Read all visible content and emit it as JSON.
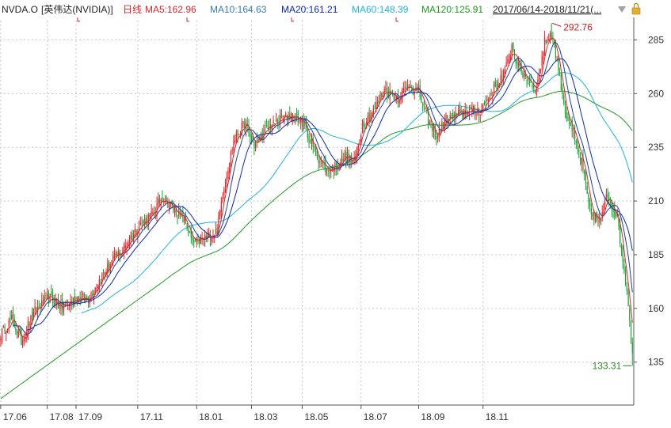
{
  "header": {
    "symbol": "NVDA.O",
    "name": "[英伟达(NVIDIA)]",
    "period": "日线",
    "ma5": "MA5:162.96",
    "ma10": "MA10:164.63",
    "ma20": "MA20:161.21",
    "ma60": "MA60:148.39",
    "ma120": "MA120:125.91",
    "range": "2017/06/14-2018/11/21(...",
    "dropdown_icon": "triangle-down-icon",
    "lock_icon": "lock-icon"
  },
  "colors": {
    "up": "#e0262b",
    "down": "#16a33a",
    "ma5": "#d6262a",
    "ma10": "#1d3f9a",
    "ma20": "#0b2aa8",
    "ma60": "#1fb4df",
    "ma120": "#1f9a1f",
    "header_symbol": "#222222",
    "header_ma10": "#3a7ab8",
    "header_ma60": "#1fb4df",
    "grid": "#c9c9c9",
    "max_label": "#cc1f1f",
    "min_label": "#2a8a2a"
  },
  "chart_data": {
    "type": "candlestick",
    "title": "NVDA.O [英伟达(NVIDIA)] 日线",
    "ylim": [
      115,
      294
    ],
    "y_ticks": [
      135,
      160,
      185,
      210,
      235,
      260,
      285
    ],
    "x_ticks": [
      "17.06",
      "17.08",
      "17.09",
      "17.11",
      "18.01",
      "18.03",
      "18.05",
      "18.07",
      "18.09",
      "18.11"
    ],
    "max_annotation": "292.76",
    "min_annotation": "133.31",
    "close_anchors": [
      [
        0,
        148
      ],
      [
        8,
        155
      ],
      [
        15,
        145
      ],
      [
        25,
        159
      ],
      [
        35,
        165
      ],
      [
        45,
        160
      ],
      [
        55,
        165
      ],
      [
        63,
        164
      ],
      [
        70,
        171
      ],
      [
        80,
        181
      ],
      [
        90,
        188
      ],
      [
        100,
        198
      ],
      [
        110,
        203
      ],
      [
        118,
        212
      ],
      [
        128,
        205
      ],
      [
        135,
        200
      ],
      [
        140,
        190
      ],
      [
        150,
        193
      ],
      [
        158,
        196
      ],
      [
        162,
        214
      ],
      [
        170,
        238
      ],
      [
        178,
        246
      ],
      [
        185,
        236
      ],
      [
        195,
        244
      ],
      [
        205,
        248
      ],
      [
        212,
        250
      ],
      [
        220,
        247
      ],
      [
        230,
        232
      ],
      [
        238,
        224
      ],
      [
        244,
        226
      ],
      [
        252,
        231
      ],
      [
        258,
        228
      ],
      [
        264,
        246
      ],
      [
        272,
        252
      ],
      [
        280,
        262
      ],
      [
        290,
        258
      ],
      [
        298,
        264
      ],
      [
        305,
        261
      ],
      [
        312,
        247
      ],
      [
        318,
        240
      ],
      [
        325,
        248
      ],
      [
        333,
        250
      ],
      [
        341,
        252
      ],
      [
        350,
        252
      ],
      [
        360,
        262
      ],
      [
        368,
        270
      ],
      [
        373,
        282
      ],
      [
        378,
        272
      ],
      [
        383,
        268
      ],
      [
        391,
        262
      ],
      [
        397,
        284
      ],
      [
        402,
        288
      ],
      [
        407,
        272
      ],
      [
        412,
        252
      ],
      [
        418,
        240
      ],
      [
        424,
        228
      ],
      [
        430,
        205
      ],
      [
        438,
        200
      ],
      [
        442,
        214
      ],
      [
        450,
        202
      ],
      [
        454,
        183
      ],
      [
        458,
        163
      ],
      [
        461,
        138
      ]
    ],
    "ma_series": [
      {
        "name": "MA5",
        "period": 5,
        "value_last": 162.96
      },
      {
        "name": "MA10",
        "period": 10,
        "value_last": 164.63
      },
      {
        "name": "MA20",
        "period": 20,
        "value_last": 161.21
      },
      {
        "name": "MA60",
        "period": 60,
        "value_last": 148.39
      },
      {
        "name": "MA120",
        "period": 120,
        "value_last": 125.91
      }
    ],
    "grid": true
  }
}
